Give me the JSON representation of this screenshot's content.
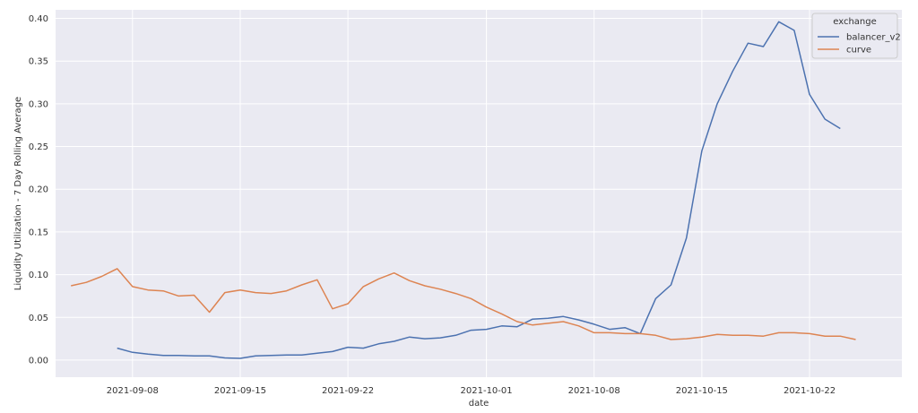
{
  "chart_data": {
    "type": "line",
    "xlabel": "date",
    "ylabel": "Liquidity Utilization - 7 Day Rolling Average",
    "ylim": [
      -0.02,
      0.41
    ],
    "xlim": [
      "2021-09-03",
      "2021-10-28"
    ],
    "yticks": [
      "0.00",
      "0.05",
      "0.10",
      "0.15",
      "0.20",
      "0.25",
      "0.30",
      "0.35",
      "0.40"
    ],
    "xticks": [
      "2021-09-08",
      "2021-09-15",
      "2021-09-22",
      "2021-10-01",
      "2021-10-08",
      "2021-10-15",
      "2021-10-22"
    ],
    "grid": true,
    "legend_position": "top-right",
    "legend": {
      "title": "exchange"
    },
    "series": [
      {
        "name": "balancer_v2",
        "color": "#4c72b0",
        "x": [
          "2021-09-07",
          "2021-09-08",
          "2021-09-09",
          "2021-09-10",
          "2021-09-11",
          "2021-09-12",
          "2021-09-13",
          "2021-09-14",
          "2021-09-15",
          "2021-09-16",
          "2021-09-17",
          "2021-09-18",
          "2021-09-19",
          "2021-09-20",
          "2021-09-21",
          "2021-09-22",
          "2021-09-23",
          "2021-09-24",
          "2021-09-25",
          "2021-09-26",
          "2021-09-27",
          "2021-09-28",
          "2021-09-29",
          "2021-09-30",
          "2021-10-01",
          "2021-10-02",
          "2021-10-03",
          "2021-10-04",
          "2021-10-05",
          "2021-10-06",
          "2021-10-07",
          "2021-10-08",
          "2021-10-09",
          "2021-10-10",
          "2021-10-11",
          "2021-10-12",
          "2021-10-13",
          "2021-10-14",
          "2021-10-15",
          "2021-10-16",
          "2021-10-17",
          "2021-10-18",
          "2021-10-19",
          "2021-10-20",
          "2021-10-21",
          "2021-10-22",
          "2021-10-23",
          "2021-10-24"
        ],
        "values": [
          0.014,
          0.009,
          0.007,
          0.0055,
          0.0055,
          0.005,
          0.005,
          0.0025,
          0.002,
          0.005,
          0.0055,
          0.006,
          0.006,
          0.008,
          0.01,
          0.015,
          0.014,
          0.019,
          0.022,
          0.027,
          0.025,
          0.026,
          0.029,
          0.035,
          0.036,
          0.04,
          0.039,
          0.048,
          0.049,
          0.051,
          0.047,
          0.042,
          0.036,
          0.038,
          0.031,
          0.072,
          0.088,
          0.143,
          0.245,
          0.3,
          0.338,
          0.371,
          0.367,
          0.396,
          0.386,
          0.311,
          0.282,
          0.271
        ]
      },
      {
        "name": "curve",
        "color": "#dd8452",
        "x": [
          "2021-09-04",
          "2021-09-05",
          "2021-09-06",
          "2021-09-07",
          "2021-09-08",
          "2021-09-09",
          "2021-09-10",
          "2021-09-11",
          "2021-09-12",
          "2021-09-13",
          "2021-09-14",
          "2021-09-15",
          "2021-09-16",
          "2021-09-17",
          "2021-09-18",
          "2021-09-19",
          "2021-09-20",
          "2021-09-21",
          "2021-09-22",
          "2021-09-23",
          "2021-09-24",
          "2021-09-25",
          "2021-09-26",
          "2021-09-27",
          "2021-09-28",
          "2021-09-29",
          "2021-09-30",
          "2021-10-01",
          "2021-10-02",
          "2021-10-03",
          "2021-10-04",
          "2021-10-05",
          "2021-10-06",
          "2021-10-07",
          "2021-10-08",
          "2021-10-09",
          "2021-10-10",
          "2021-10-11",
          "2021-10-12",
          "2021-10-13",
          "2021-10-14",
          "2021-10-15",
          "2021-10-16",
          "2021-10-17",
          "2021-10-18",
          "2021-10-19",
          "2021-10-20",
          "2021-10-21",
          "2021-10-22",
          "2021-10-23",
          "2021-10-24",
          "2021-10-25"
        ],
        "values": [
          0.087,
          0.091,
          0.098,
          0.107,
          0.086,
          0.082,
          0.081,
          0.075,
          0.076,
          0.056,
          0.079,
          0.082,
          0.079,
          0.078,
          0.081,
          0.088,
          0.094,
          0.06,
          0.066,
          0.086,
          0.095,
          0.102,
          0.093,
          0.087,
          0.083,
          0.078,
          0.072,
          0.062,
          0.054,
          0.045,
          0.041,
          0.043,
          0.045,
          0.04,
          0.032,
          0.032,
          0.031,
          0.031,
          0.029,
          0.024,
          0.025,
          0.027,
          0.03,
          0.029,
          0.029,
          0.028,
          0.032,
          0.032,
          0.031,
          0.028,
          0.028,
          0.024
        ]
      }
    ]
  }
}
